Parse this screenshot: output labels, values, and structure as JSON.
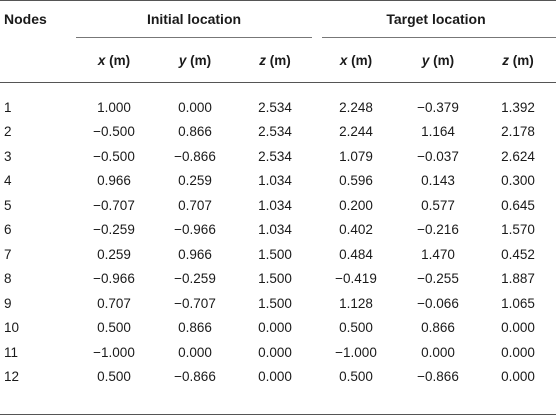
{
  "table": {
    "nodes_header": "Nodes",
    "group_headers": [
      "Initial location",
      "Target location"
    ],
    "sub_headers": [
      {
        "var": "x",
        "unit": " (m)"
      },
      {
        "var": "y",
        "unit": " (m)"
      },
      {
        "var": "z",
        "unit": " (m)"
      },
      {
        "var": "x",
        "unit": " (m)"
      },
      {
        "var": "y",
        "unit": " (m)"
      },
      {
        "var": "z",
        "unit": " (m)"
      }
    ],
    "rows": [
      [
        "1",
        "1.000",
        "0.000",
        "2.534",
        "2.248",
        "−0.379",
        "1.392"
      ],
      [
        "2",
        "−0.500",
        "0.866",
        "2.534",
        "2.244",
        "1.164",
        "2.178"
      ],
      [
        "3",
        "−0.500",
        "−0.866",
        "2.534",
        "1.079",
        "−0.037",
        "2.624"
      ],
      [
        "4",
        "0.966",
        "0.259",
        "1.034",
        "0.596",
        "0.143",
        "0.300"
      ],
      [
        "5",
        "−0.707",
        "0.707",
        "1.034",
        "0.200",
        "0.577",
        "0.645"
      ],
      [
        "6",
        "−0.259",
        "−0.966",
        "1.034",
        "0.402",
        "−0.216",
        "1.570"
      ],
      [
        "7",
        "0.259",
        "0.966",
        "1.500",
        "0.484",
        "1.470",
        "0.452"
      ],
      [
        "8",
        "−0.966",
        "−0.259",
        "1.500",
        "−0.419",
        "−0.255",
        "1.887"
      ],
      [
        "9",
        "0.707",
        "−0.707",
        "1.500",
        "1.128",
        "−0.066",
        "1.065"
      ],
      [
        "10",
        "0.500",
        "0.866",
        "0.000",
        "0.500",
        "0.866",
        "0.000"
      ],
      [
        "11",
        "−1.000",
        "0.000",
        "0.000",
        "−1.000",
        "0.000",
        "0.000"
      ],
      [
        "12",
        "0.500",
        "−0.866",
        "0.000",
        "0.500",
        "−0.866",
        "0.000"
      ]
    ]
  }
}
